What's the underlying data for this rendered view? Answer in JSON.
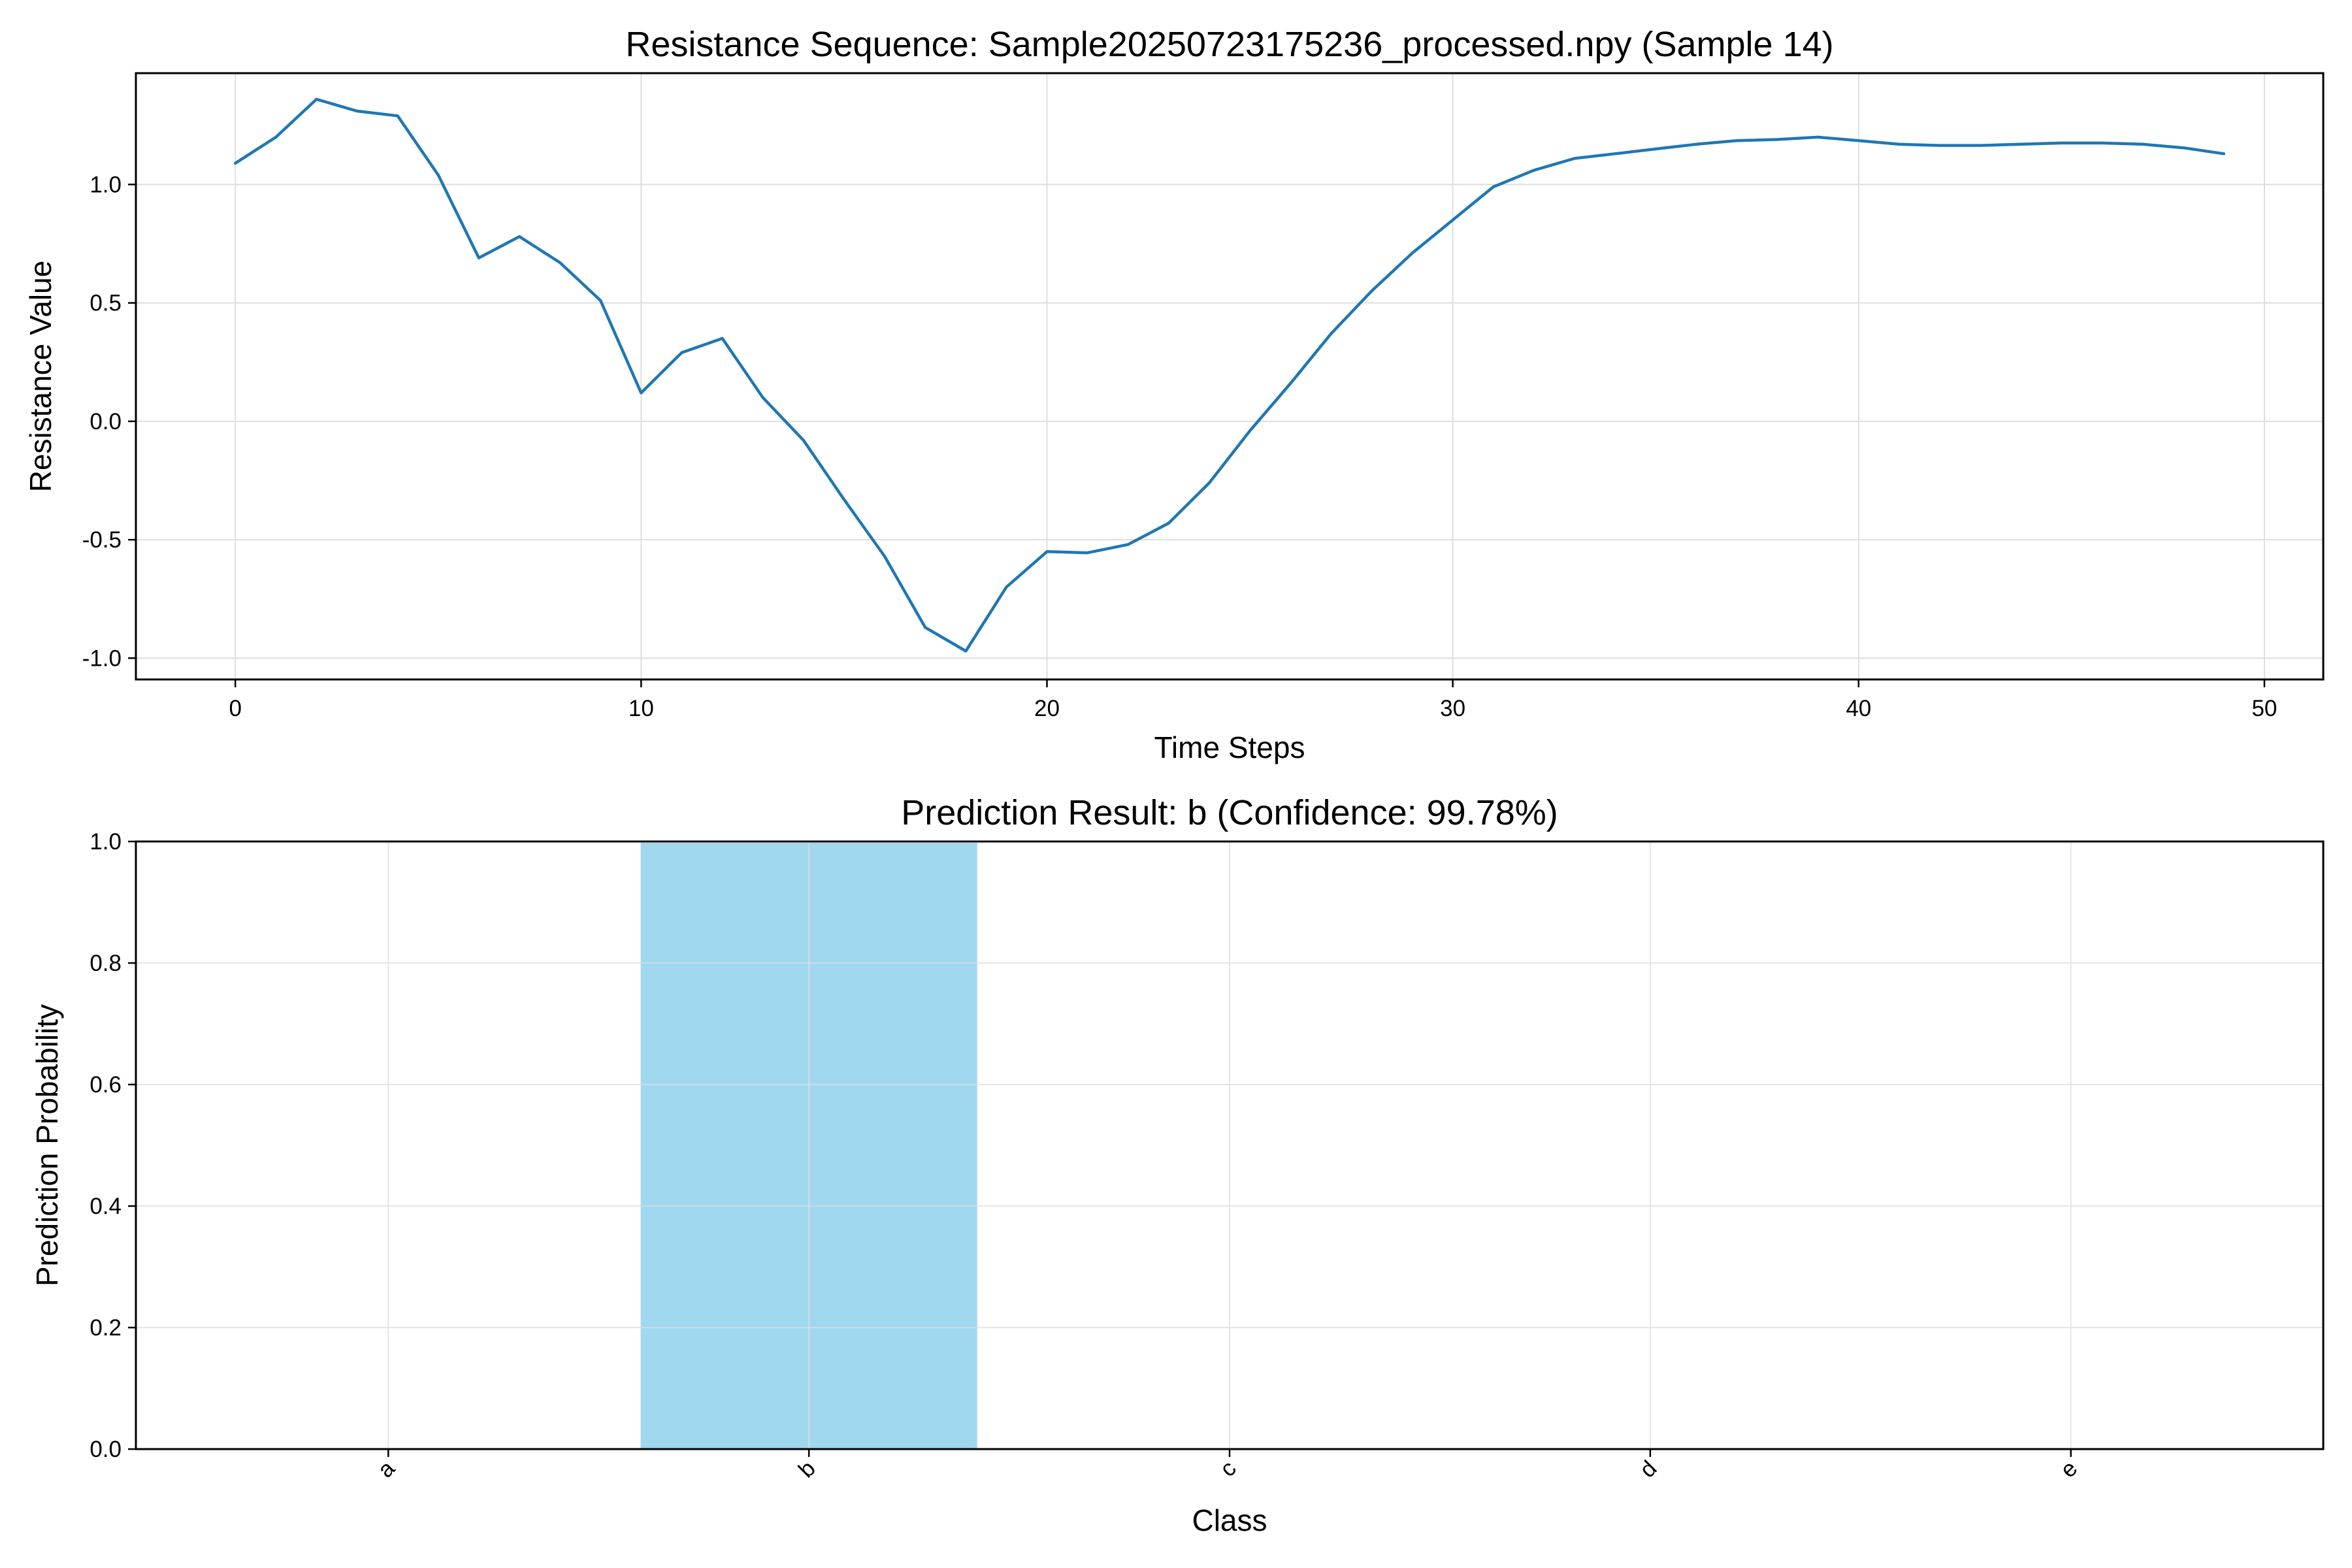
{
  "chart_data": [
    {
      "type": "line",
      "title": "Resistance Sequence: Sample20250723175236_processed.npy (Sample 14)",
      "xlabel": "Time Steps",
      "ylabel": "Resistance Value",
      "xlim": [
        -2.45,
        51.45
      ],
      "ylim": [
        -1.09,
        1.47
      ],
      "xticks": [
        0,
        10,
        20,
        30,
        40,
        50
      ],
      "yticks": [
        -1.0,
        -0.5,
        0.0,
        0.5,
        1.0
      ],
      "ytick_labels": [
        "-1.0",
        "-0.5",
        "0.0",
        "0.5",
        "1.0"
      ],
      "grid": true,
      "color": "#1f77b4",
      "series": [
        {
          "x": [
            0,
            1,
            2,
            3,
            4,
            5,
            6,
            7,
            8,
            9,
            10,
            11,
            12,
            13,
            14,
            15,
            16,
            17,
            18,
            19,
            20,
            21,
            22,
            23,
            24,
            25,
            26,
            27,
            28,
            29,
            30,
            31,
            32,
            33,
            34,
            35,
            36,
            37,
            38,
            39,
            40,
            41,
            42,
            43,
            44,
            45,
            46,
            47,
            48,
            49
          ],
          "values": [
            1.09,
            1.2,
            1.36,
            1.31,
            1.29,
            1.04,
            0.69,
            0.78,
            0.67,
            0.51,
            0.12,
            0.29,
            0.35,
            0.1,
            -0.08,
            -0.33,
            -0.57,
            -0.87,
            -0.97,
            -0.7,
            -0.55,
            -0.555,
            -0.52,
            -0.43,
            -0.26,
            -0.04,
            0.16,
            0.37,
            0.55,
            0.71,
            0.85,
            0.99,
            1.06,
            1.11,
            1.13,
            1.15,
            1.17,
            1.185,
            1.19,
            1.2,
            1.185,
            1.17,
            1.165,
            1.165,
            1.17,
            1.175,
            1.175,
            1.17,
            1.155,
            1.13
          ]
        }
      ]
    },
    {
      "type": "bar",
      "title": "Prediction Result: b (Confidence: 99.78%)",
      "xlabel": "Class",
      "ylabel": "Prediction Probability",
      "categories": [
        "a",
        "b",
        "c",
        "d",
        "e"
      ],
      "values": [
        0.0005,
        0.9978,
        0.0006,
        0.0006,
        0.0005
      ],
      "ylim": [
        0,
        1.0
      ],
      "yticks": [
        0.0,
        0.2,
        0.4,
        0.6,
        0.8,
        1.0
      ],
      "ytick_labels": [
        "0.0",
        "0.2",
        "0.4",
        "0.6",
        "0.8",
        "1.0"
      ],
      "grid": true,
      "color": "#87ceeb"
    }
  ]
}
